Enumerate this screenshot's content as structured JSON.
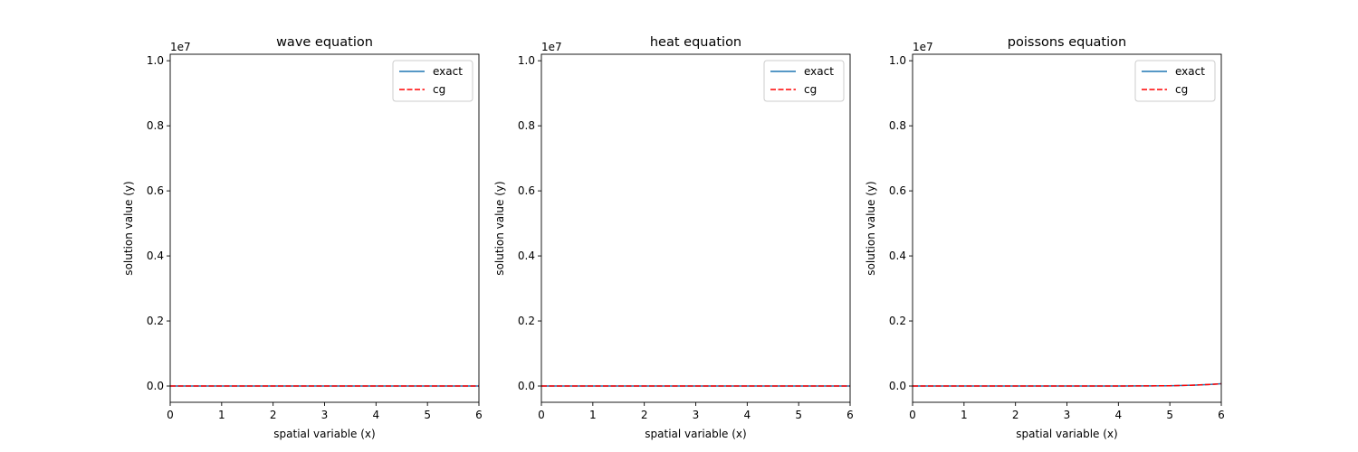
{
  "chart_data": [
    {
      "type": "line",
      "title": "wave equation",
      "xlabel": "spatial variable (x)",
      "ylabel": "solution value (y)",
      "xlim": [
        0,
        6
      ],
      "ylim": [
        -500000,
        10200000
      ],
      "xticks": [
        0,
        1,
        2,
        3,
        4,
        5,
        6
      ],
      "yticks": [
        0,
        2000000,
        4000000,
        6000000,
        8000000,
        10000000
      ],
      "ytick_labels": [
        "0.0",
        "0.2",
        "0.4",
        "0.6",
        "0.8",
        "1.0"
      ],
      "y_offset_label": "1e7",
      "legend": "upper-right",
      "series": [
        {
          "name": "exact",
          "color": "#1f77b4",
          "style": "solid",
          "x": [
            0,
            1,
            2,
            3,
            4,
            5,
            6
          ],
          "y": [
            0,
            0,
            0,
            0,
            0,
            0,
            0
          ]
        },
        {
          "name": "cg",
          "color": "#ff0000",
          "style": "dashed",
          "x": [
            0,
            1,
            2,
            3,
            4,
            5,
            6
          ],
          "y": [
            0,
            0,
            0,
            0,
            0,
            0,
            0
          ]
        }
      ]
    },
    {
      "type": "line",
      "title": "heat equation",
      "xlabel": "spatial variable (x)",
      "ylabel": "solution value (y)",
      "xlim": [
        0,
        6
      ],
      "ylim": [
        -500000,
        10200000
      ],
      "xticks": [
        0,
        1,
        2,
        3,
        4,
        5,
        6
      ],
      "yticks": [
        0,
        2000000,
        4000000,
        6000000,
        8000000,
        10000000
      ],
      "ytick_labels": [
        "0.0",
        "0.2",
        "0.4",
        "0.6",
        "0.8",
        "1.0"
      ],
      "y_offset_label": "1e7",
      "legend": "upper-right",
      "series": [
        {
          "name": "exact",
          "color": "#1f77b4",
          "style": "solid",
          "x": [
            0,
            1,
            2,
            3,
            4,
            5,
            6
          ],
          "y": [
            0,
            0,
            0,
            0,
            0,
            0,
            0
          ]
        },
        {
          "name": "cg",
          "color": "#ff0000",
          "style": "dashed",
          "x": [
            0,
            1,
            2,
            3,
            4,
            5,
            6
          ],
          "y": [
            0,
            0,
            0,
            0,
            0,
            0,
            0
          ]
        }
      ]
    },
    {
      "type": "line",
      "title": "poissons equation",
      "xlabel": "spatial variable (x)",
      "ylabel": "solution value (y)",
      "xlim": [
        0,
        6
      ],
      "ylim": [
        -500000,
        10200000
      ],
      "xticks": [
        0,
        1,
        2,
        3,
        4,
        5,
        6
      ],
      "yticks": [
        0,
        2000000,
        4000000,
        6000000,
        8000000,
        10000000
      ],
      "ytick_labels": [
        "0.0",
        "0.2",
        "0.4",
        "0.6",
        "0.8",
        "1.0"
      ],
      "y_offset_label": "1e7",
      "legend": "upper-right",
      "series": [
        {
          "name": "exact",
          "color": "#1f77b4",
          "style": "solid",
          "x": [
            0,
            1,
            2,
            3,
            4,
            4.5,
            5,
            5.25,
            5.5,
            5.75,
            6
          ],
          "y": [
            0,
            0,
            0,
            0,
            1000,
            3000,
            9000,
            16000,
            28000,
            45000,
            70000
          ]
        },
        {
          "name": "cg",
          "color": "#ff0000",
          "style": "dashed",
          "x": [
            0,
            1,
            2,
            3,
            4,
            4.5,
            5,
            5.25,
            5.5,
            5.75,
            6
          ],
          "y": [
            0,
            0,
            0,
            0,
            1000,
            3000,
            9000,
            16000,
            28000,
            45000,
            70000
          ]
        }
      ]
    }
  ]
}
